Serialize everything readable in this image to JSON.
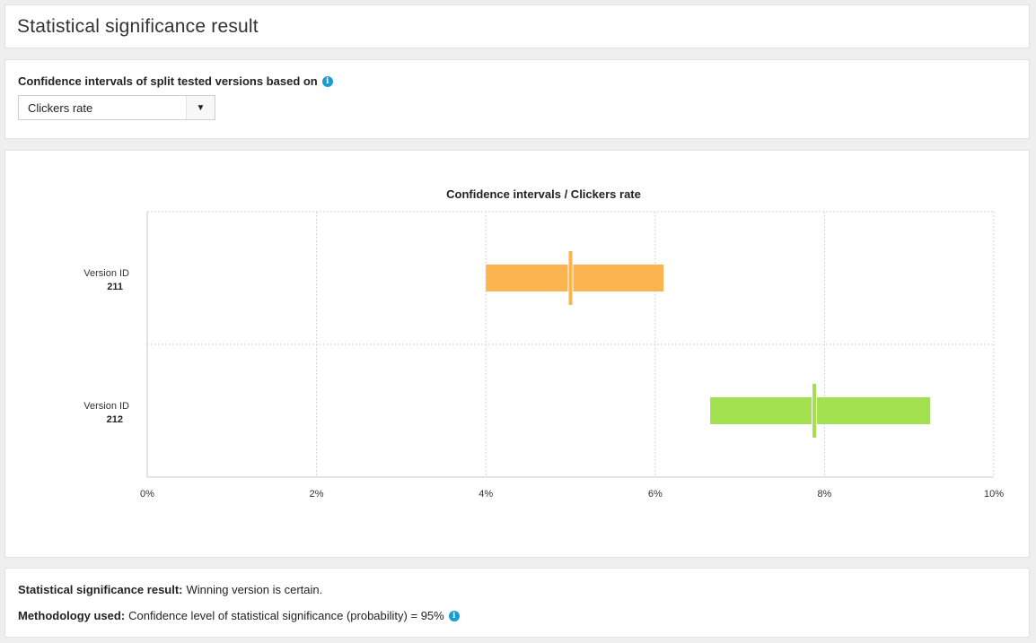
{
  "page": {
    "title": "Statistical significance result"
  },
  "selector": {
    "label": "Confidence intervals of split tested versions based on",
    "info_icon": "info-icon",
    "selected_value": "Clickers rate",
    "arrow_icon": "caret-down-icon"
  },
  "chart_data": {
    "type": "confidence-interval",
    "title": "Confidence intervals / Clickers rate",
    "xlabel": "",
    "ylabel": "",
    "xlim": [
      0,
      10
    ],
    "x_ticks": [
      "0%",
      "2%",
      "4%",
      "6%",
      "8%",
      "10%"
    ],
    "x_tick_values": [
      0,
      2,
      4,
      6,
      8,
      10
    ],
    "grid": true,
    "categories": [
      {
        "label": "Version ID",
        "id": "211",
        "low": 4.0,
        "high": 6.1,
        "mean": 5.0,
        "color": "#fbb44f"
      },
      {
        "label": "Version ID",
        "id": "212",
        "low": 6.65,
        "high": 9.25,
        "mean": 7.88,
        "color": "#a3e04f"
      }
    ]
  },
  "result": {
    "significance_label": "Statistical significance result:",
    "significance_value": "Winning version is certain.",
    "methodology_label": "Methodology used:",
    "methodology_value": "Confidence level of statistical significance (probability) = 95%",
    "info_icon": "info-icon"
  },
  "colors": {
    "accent_info": "#1a9bd2",
    "version_211": "#fbb44f",
    "version_212": "#a3e04f"
  }
}
